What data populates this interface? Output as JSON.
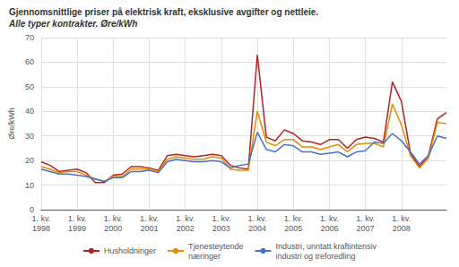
{
  "chart_data": {
    "type": "line",
    "title": "Gjennomsnittlige priser på elektrisk kraft, eksklusive avgifter og nettleie.",
    "subtitle": "Alle typer kontrakter. Øre/kWh",
    "y_label": "Øre/kWh",
    "categories": [
      "1. kv.\n1998",
      null,
      null,
      null,
      "1. kv.\n1999",
      null,
      null,
      null,
      "1. kv.\n2000",
      null,
      null,
      null,
      "1. kv.\n2001",
      null,
      null,
      null,
      "1. kv.\n2002",
      null,
      null,
      null,
      "1. kv.\n2003",
      null,
      null,
      null,
      "1. kv.\n2004",
      null,
      null,
      null,
      "1. kv.\n2005",
      null,
      null,
      null,
      "1. kv.\n2006",
      null,
      null,
      null,
      "1. kv.\n2007",
      null,
      null,
      null,
      "1. kv.\n2008",
      null,
      null,
      null,
      null,
      null
    ],
    "series": [
      {
        "name": "Husholdninger",
        "color": "#b22222",
        "values": [
          19.5,
          18.0,
          15.5,
          16.0,
          16.5,
          15.0,
          11.0,
          11.0,
          14.0,
          14.5,
          17.5,
          17.5,
          17.0,
          16.0,
          22.0,
          22.5,
          22.0,
          21.5,
          22.0,
          22.5,
          22.0,
          18.0,
          17.0,
          16.5,
          63.0,
          29.5,
          28.0,
          32.5,
          31.0,
          28.0,
          27.5,
          26.5,
          28.5,
          28.5,
          25.0,
          28.5,
          29.5,
          29.0,
          27.5,
          52.0,
          44.0,
          23.0,
          17.5,
          22.0,
          37.0,
          39.5
        ]
      },
      {
        "name": "Tjenesteytende\nnæringer",
        "color": "#e88a00",
        "values": [
          17.5,
          16.5,
          15.0,
          15.5,
          15.5,
          14.0,
          12.5,
          11.5,
          13.5,
          13.5,
          16.5,
          16.5,
          16.5,
          15.5,
          20.5,
          21.5,
          21.0,
          20.5,
          20.5,
          21.5,
          21.0,
          16.5,
          16.0,
          16.0,
          40.0,
          27.5,
          26.0,
          28.5,
          28.5,
          25.5,
          25.5,
          24.5,
          25.5,
          26.5,
          23.5,
          26.5,
          27.0,
          27.0,
          25.5,
          43.0,
          34.5,
          22.0,
          17.0,
          21.0,
          35.5,
          35.0
        ]
      },
      {
        "name": "Industri, unntatt kraftintensiv\nindustri og treforedling",
        "color": "#4472c4",
        "values": [
          16.5,
          15.5,
          14.5,
          14.5,
          14.0,
          13.5,
          12.5,
          11.5,
          13.0,
          13.0,
          15.5,
          15.5,
          16.0,
          15.0,
          19.5,
          20.5,
          20.0,
          19.5,
          19.5,
          20.0,
          19.5,
          17.0,
          18.0,
          18.5,
          31.5,
          24.5,
          23.5,
          26.5,
          26.0,
          23.5,
          23.5,
          22.5,
          23.0,
          23.5,
          21.5,
          23.5,
          24.0,
          27.5,
          27.0,
          31.0,
          28.0,
          23.5,
          18.5,
          22.0,
          30.0,
          29.0
        ]
      }
    ],
    "ylim": [
      0,
      70
    ],
    "yticks": [
      0,
      10,
      20,
      30,
      40,
      50,
      60,
      70
    ],
    "grid": true,
    "legend": "bottom"
  }
}
